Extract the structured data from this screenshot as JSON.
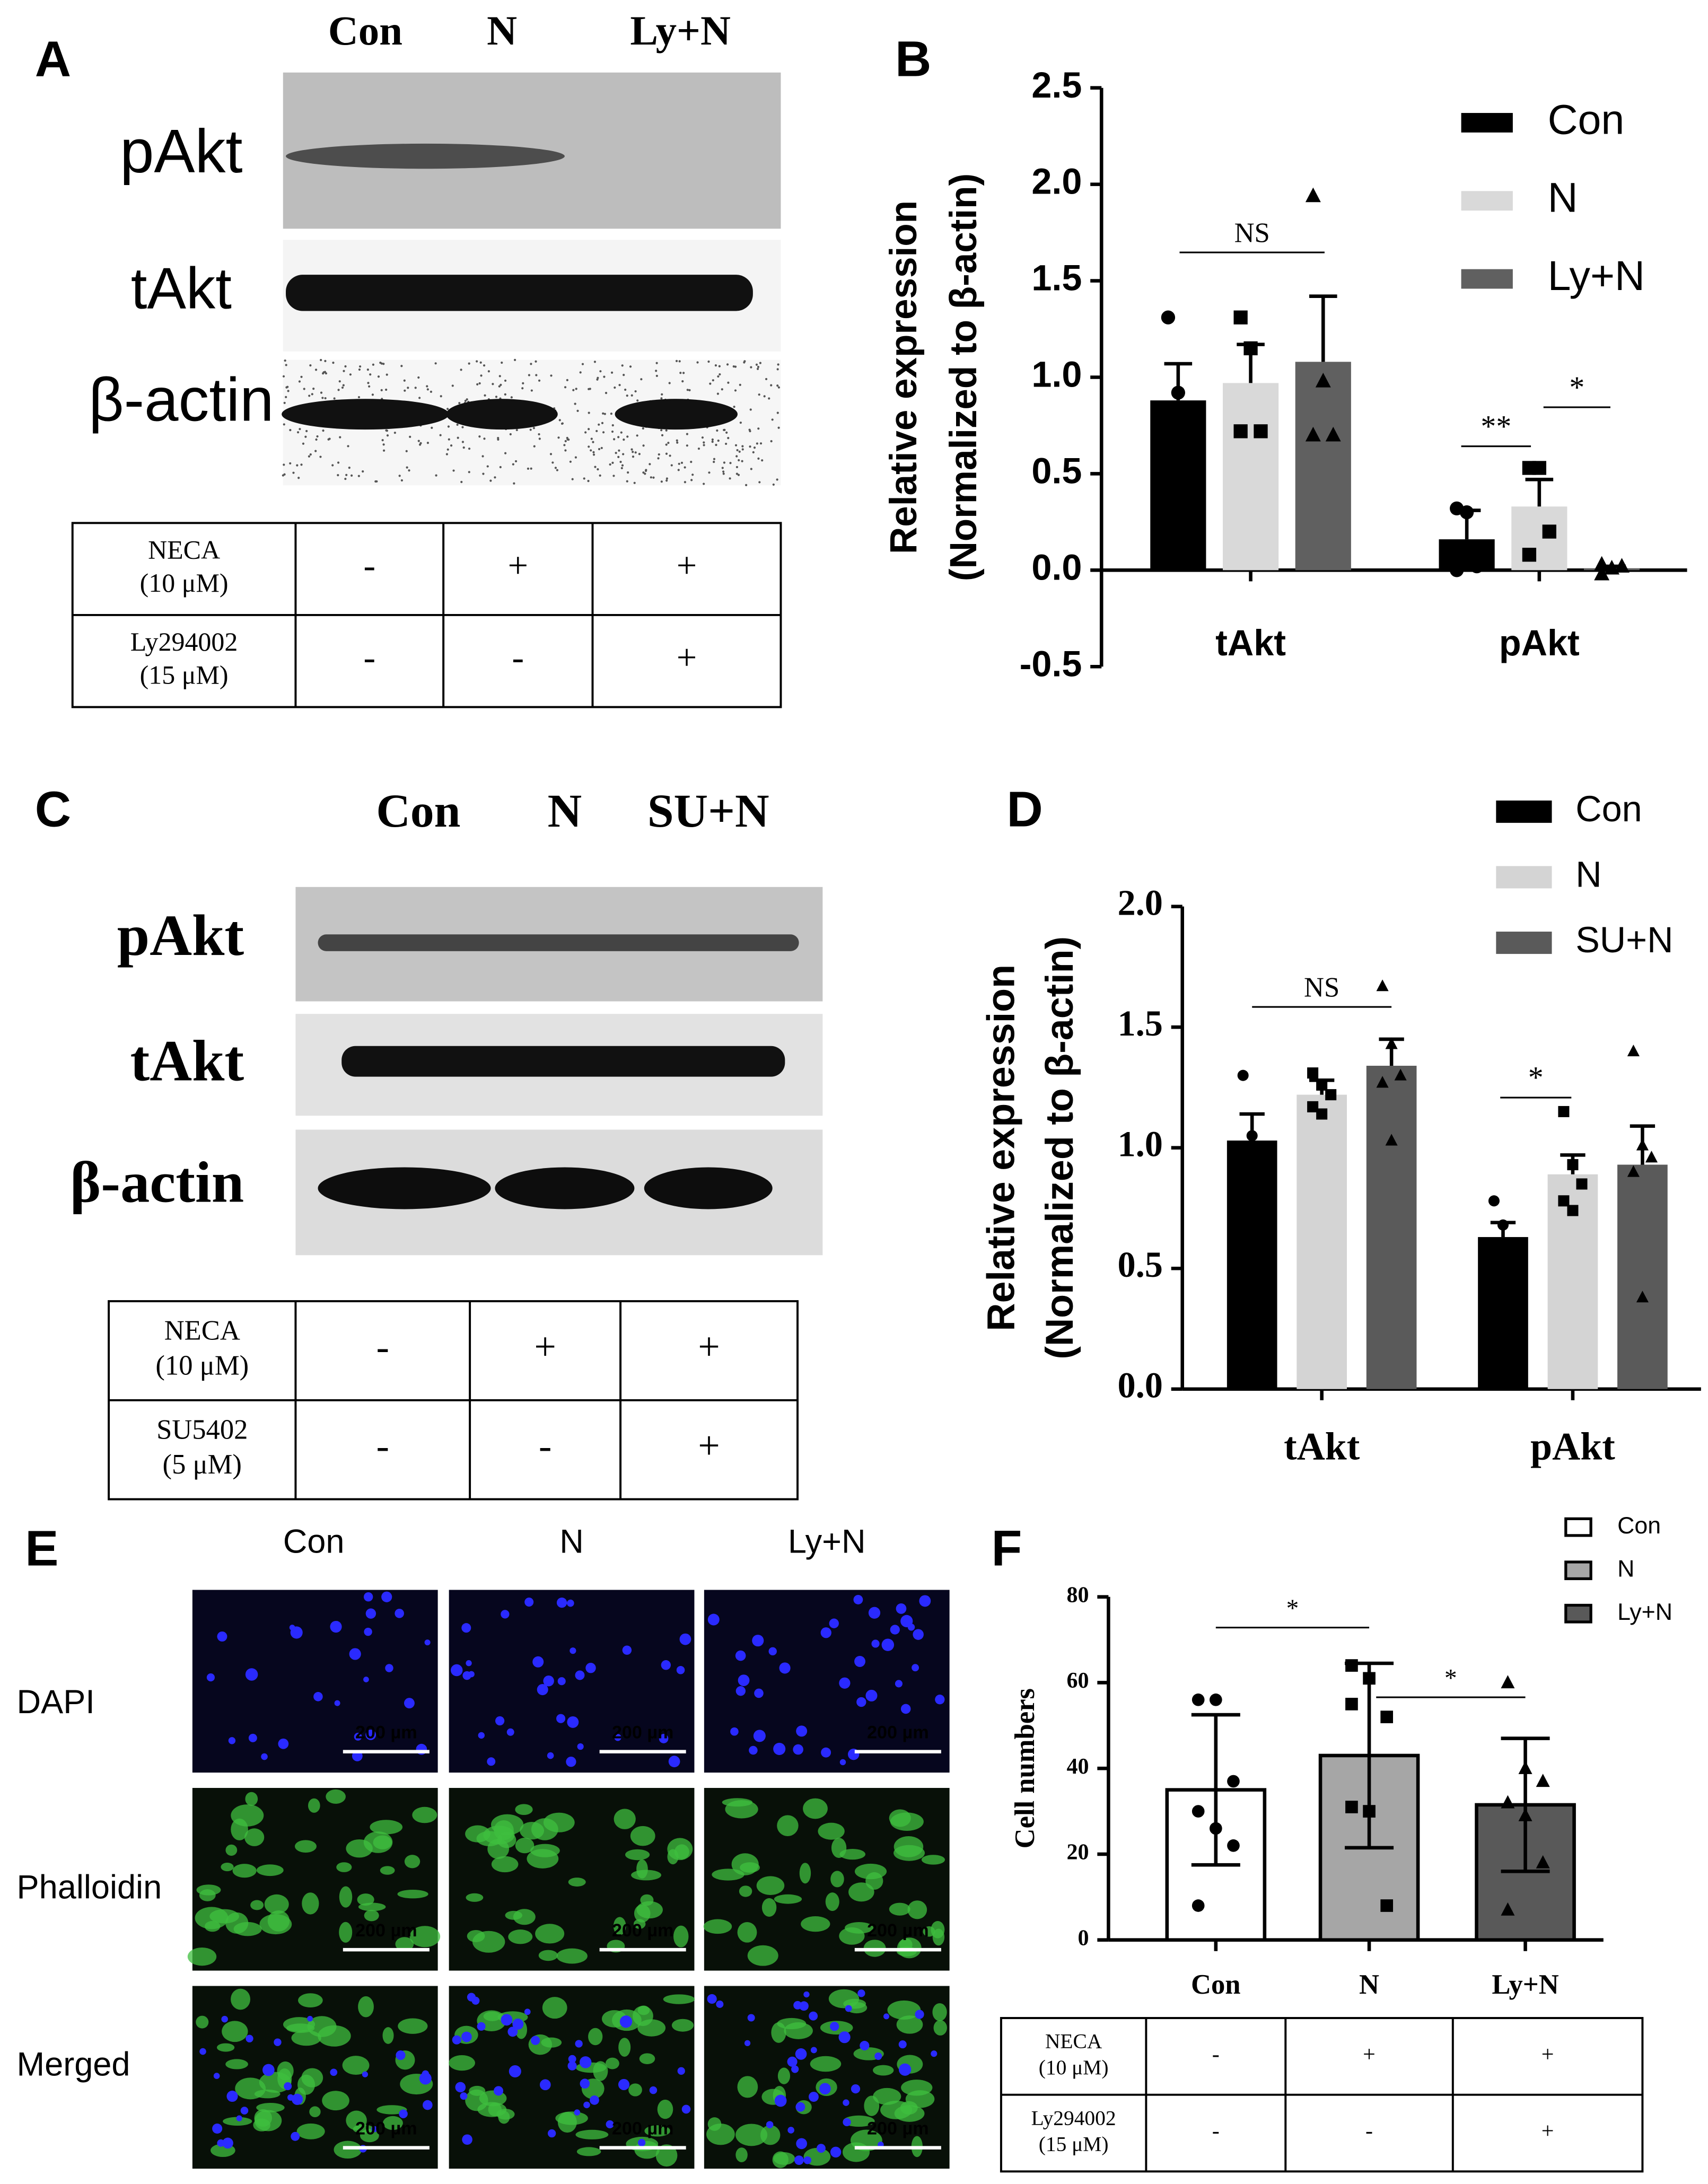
{
  "panel_labels": [
    "A",
    "B",
    "C",
    "D",
    "E",
    "F"
  ],
  "blot_A": {
    "lanes": [
      "Con",
      "N",
      "Ly+N"
    ],
    "rows": [
      "pAkt",
      "tAkt",
      "β-actin"
    ]
  },
  "table_A": {
    "rows": [
      [
        [
          "NECA",
          "(10 μM)"
        ],
        "-",
        "+",
        "+"
      ],
      [
        [
          "Ly294002",
          "(15 μM)"
        ],
        "-",
        "-",
        "+"
      ]
    ]
  },
  "blot_C": {
    "lanes": [
      "Con",
      "N",
      "SU+N"
    ],
    "rows": [
      "pAkt",
      "tAkt",
      "β-actin"
    ]
  },
  "table_C": {
    "rows": [
      [
        [
          "NECA",
          "(10 μM)"
        ],
        "-",
        "+",
        "+"
      ],
      [
        [
          "SU5402",
          "(5 μM)"
        ],
        "-",
        "-",
        "+"
      ]
    ]
  },
  "images_E": {
    "columns": [
      "Con",
      "N",
      "Ly+N"
    ],
    "rows": [
      "DAPI",
      "Phalloidin",
      "Merged"
    ],
    "scale_bar": "200 µm"
  },
  "table_F": {
    "rows": [
      [
        [
          "NECA",
          "(10 μM)"
        ],
        "-",
        "+",
        "+"
      ],
      [
        [
          "Ly294002",
          "(15 μM)"
        ],
        "-",
        "-",
        "+"
      ]
    ]
  },
  "chart_data": [
    {
      "type": "bar",
      "ylabel": [
        "Relative expression",
        "(Normalized to β-actin)"
      ],
      "categories": [
        "tAkt",
        "pAkt"
      ],
      "series": [
        {
          "name": "Con",
          "color": "#000000",
          "values": [
            0.88,
            0.16
          ],
          "errors": [
            0.19,
            0.15
          ],
          "points": [
            [
              1.31,
              0.92,
              0.65,
              0.64
            ],
            [
              0.32,
              0.3,
              0.02,
              0.0
            ]
          ]
        },
        {
          "name": "N",
          "color": "#d9d9d9",
          "values": [
            0.97,
            0.33
          ],
          "errors": [
            0.2,
            0.14
          ],
          "points": [
            [
              1.31,
              1.15,
              0.72,
              0.72
            ],
            [
              0.53,
              0.53,
              0.2,
              0.08
            ]
          ]
        },
        {
          "name": "Ly+N",
          "color": "#606060",
          "values": [
            1.08,
            0.01
          ],
          "errors": [
            0.34,
            0.01
          ],
          "points": [
            [
              1.94,
              0.98,
              0.7,
              0.7
            ],
            [
              -0.02,
              0.01,
              0.02,
              0.03
            ]
          ]
        }
      ],
      "error_style": "upper",
      "ylim": [
        -0.5,
        2.5
      ],
      "yticks": [
        -0.5,
        {
          "value": 0,
          "label": "0.0"
        },
        0.5,
        {
          "value": 1,
          "label": "1.0"
        },
        1.5,
        {
          "value": 2,
          "label": "2.0"
        },
        2.5
      ],
      "grid": false,
      "legend": "top-right",
      "annotations": [
        "NS",
        "**",
        "*"
      ]
    },
    {
      "type": "bar",
      "ylabel": [
        "Relative expression",
        "(Normalized to β-actin)"
      ],
      "categories": [
        "tAkt",
        "pAkt"
      ],
      "series": [
        {
          "name": "Con",
          "color": "#000000",
          "values": [
            1.03,
            0.63
          ],
          "errors": [
            0.11,
            0.06
          ],
          "points": [
            [
              1.3,
              1.05,
              0.98,
              0.92,
              0.9
            ],
            [
              0.78,
              0.68,
              0.6,
              0.56,
              0.53
            ]
          ]
        },
        {
          "name": "N",
          "color": "#d4d4d4",
          "values": [
            1.22,
            0.89
          ],
          "errors": [
            0.06,
            0.08
          ],
          "points": [
            [
              1.31,
              1.26,
              1.22,
              1.17,
              1.14
            ],
            [
              1.15,
              0.93,
              0.85,
              0.78,
              0.74
            ]
          ]
        },
        {
          "name": "SU+N",
          "color": "#5a5a5a",
          "values": [
            1.34,
            0.93
          ],
          "errors": [
            0.11,
            0.16
          ],
          "points": [
            [
              1.67,
              1.43,
              1.3,
              1.27,
              1.03
            ],
            [
              1.4,
              1.01,
              0.96,
              0.9,
              0.38
            ]
          ]
        }
      ],
      "error_style": "upper",
      "ylim": [
        0,
        2
      ],
      "yticks": [
        {
          "value": 0,
          "label": "0.0"
        },
        0.5,
        {
          "value": 1,
          "label": "1.0"
        },
        1.5,
        {
          "value": 2,
          "label": "2.0"
        }
      ],
      "grid": false,
      "legend": "top-right",
      "annotations": [
        "NS",
        "*"
      ]
    },
    {
      "type": "bar",
      "ylabel": [
        "Cell numbers"
      ],
      "categories": [
        "Con",
        "N",
        "Ly+N"
      ],
      "values": [
        35,
        43,
        31.5
      ],
      "errors": [
        17.5,
        21.5,
        15.5
      ],
      "colors": [
        "#ffffff",
        "#a6a6a6",
        "#595959"
      ],
      "points": [
        [
          56,
          56,
          37,
          30,
          26,
          22,
          8
        ],
        [
          64,
          61,
          52,
          31,
          30,
          8,
          55
        ],
        [
          60,
          40,
          37,
          32,
          29,
          18,
          7
        ]
      ],
      "error_style": "both",
      "ylim": [
        0,
        80
      ],
      "yticks": [
        0,
        20,
        40,
        60,
        80
      ],
      "grid": false,
      "legend": "top-right",
      "annotations": [
        "*",
        "*"
      ]
    }
  ]
}
